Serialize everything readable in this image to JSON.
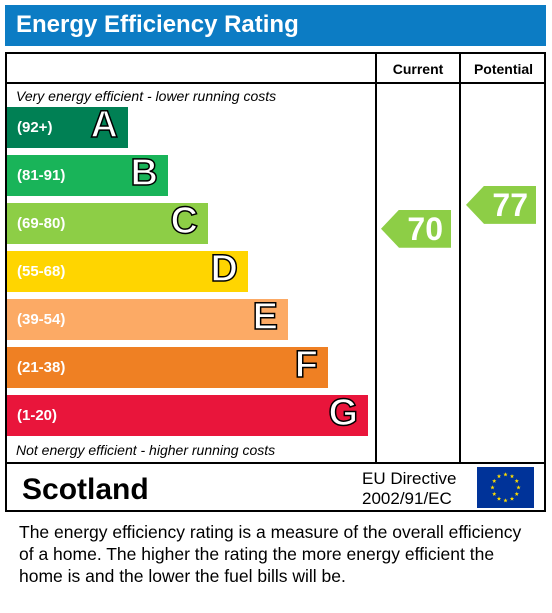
{
  "title": "Energy Efficiency Rating",
  "columns": {
    "current": "Current",
    "potential": "Potential"
  },
  "notes": {
    "top": "Very energy efficient - lower running costs",
    "bottom": "Not energy efficient - higher running costs"
  },
  "chart_data": {
    "type": "bar",
    "title": "Energy Efficiency Rating",
    "bands": [
      {
        "letter": "A",
        "range": "(92+)",
        "color": "#008054"
      },
      {
        "letter": "B",
        "range": "(81-91)",
        "color": "#19b459"
      },
      {
        "letter": "C",
        "range": "(69-80)",
        "color": "#8dce46"
      },
      {
        "letter": "D",
        "range": "(55-68)",
        "color": "#ffd500"
      },
      {
        "letter": "E",
        "range": "(39-54)",
        "color": "#fcaa65"
      },
      {
        "letter": "F",
        "range": "(21-38)",
        "color": "#ef8023"
      },
      {
        "letter": "G",
        "range": "(1-20)",
        "color": "#e9153b"
      }
    ],
    "current": {
      "label": "Current",
      "value": 70,
      "band": "C",
      "color": "#8dce46"
    },
    "potential": {
      "label": "Potential",
      "value": 77,
      "band": "C",
      "color": "#8dce46"
    }
  },
  "region": "Scotland",
  "directive": {
    "line1": "EU Directive",
    "line2": "2002/91/EC"
  },
  "flag": {
    "name": "eu-flag-icon",
    "background": "#003399",
    "stars": "#ffdd00"
  },
  "footer": "The energy efficiency rating is a measure of the overall efficiency of a home.  The higher the rating the more energy efficient the home is and the lower the fuel bills will be."
}
